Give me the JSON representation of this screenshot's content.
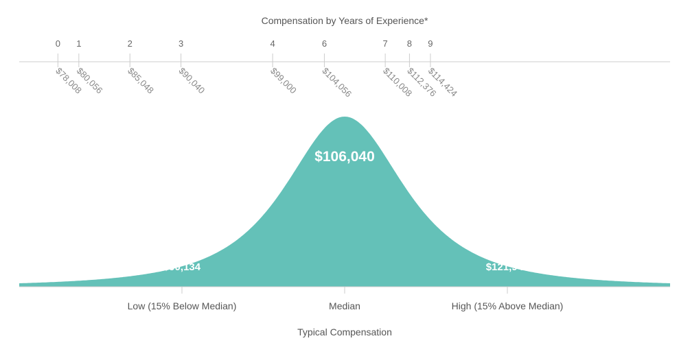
{
  "chart_data": {
    "type": "area",
    "title": "Compensation by Years of Experience*",
    "experience": [
      {
        "years": "0",
        "salary": "$78,008",
        "value": 78008
      },
      {
        "years": "1",
        "salary": "$80,056",
        "value": 80056
      },
      {
        "years": "2",
        "salary": "$85,048",
        "value": 85048
      },
      {
        "years": "3",
        "salary": "$90,040",
        "value": 90040
      },
      {
        "years": "4",
        "salary": "$99,000",
        "value": 99000
      },
      {
        "years": "6",
        "salary": "$104,056",
        "value": 104056
      },
      {
        "years": "7",
        "salary": "$110,008",
        "value": 110008
      },
      {
        "years": "8",
        "salary": "$112,376",
        "value": 112376
      },
      {
        "years": "9",
        "salary": "$114,424",
        "value": 114424
      }
    ],
    "distribution": {
      "low": {
        "label": "Low (15% Below Median)",
        "value": "$90,134",
        "amount": 90134
      },
      "median": {
        "label": "Median",
        "value": "$106,040",
        "amount": 106040
      },
      "high": {
        "label": "High (15% Above Median)",
        "value": "$121,946",
        "amount": 121946
      }
    },
    "xlabel": "Typical Compensation",
    "fill_color": "#64c1b8",
    "grid": false
  }
}
